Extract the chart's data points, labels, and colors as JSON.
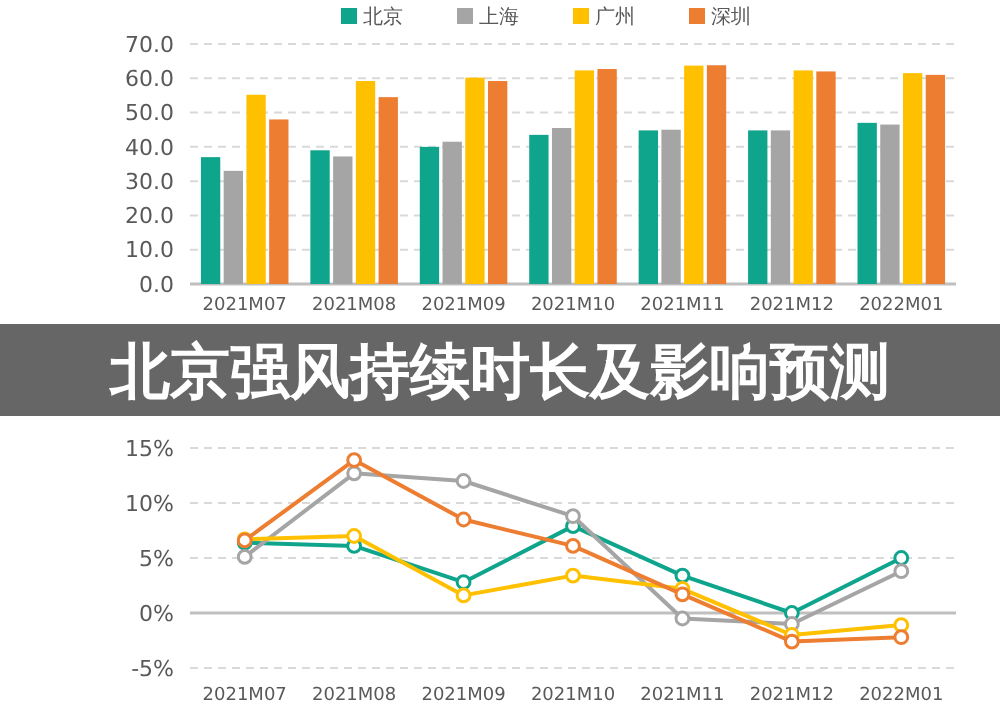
{
  "chart_data": [
    {
      "type": "bar",
      "categories": [
        "2021M07",
        "2021M08",
        "2021M09",
        "2021M10",
        "2021M11",
        "2021M12",
        "2022M01"
      ],
      "series": [
        {
          "name": "北京",
          "color": "#0fa58c",
          "values": [
            37,
            39,
            40,
            43.5,
            44.8,
            44.8,
            47
          ]
        },
        {
          "name": "上海",
          "color": "#a5a5a5",
          "values": [
            33,
            37.2,
            41.5,
            45.5,
            45,
            44.8,
            46.5
          ]
        },
        {
          "name": "广州",
          "color": "#ffc000",
          "values": [
            55.2,
            59.2,
            60.2,
            62.3,
            63.7,
            62.3,
            61.5
          ]
        },
        {
          "name": "深圳",
          "color": "#ed7d31",
          "values": [
            48,
            54.5,
            59.2,
            62.7,
            63.8,
            62,
            61
          ]
        }
      ],
      "ylim": [
        0,
        70
      ],
      "yticks": [
        {
          "value": 0,
          "label": "0.0"
        },
        {
          "value": 10,
          "label": "10.0"
        },
        {
          "value": 20,
          "label": "20.0"
        },
        {
          "value": 30,
          "label": "30.0"
        },
        {
          "value": 40,
          "label": "40.0"
        },
        {
          "value": 50,
          "label": "50.0"
        },
        {
          "value": 60,
          "label": "60.0"
        },
        {
          "value": 70,
          "label": "70.0"
        }
      ],
      "grid": "y",
      "legend": "top"
    },
    {
      "type": "line",
      "title": "北京强风持续时长及影响预测",
      "categories": [
        "2021M07",
        "2021M08",
        "2021M09",
        "2021M10",
        "2021M11",
        "2021M12",
        "2022M01"
      ],
      "series": [
        {
          "color": "#0fa58c",
          "values": [
            6.4,
            6.1,
            2.8,
            7.9,
            3.4,
            0,
            5.0
          ]
        },
        {
          "color": "#a5a5a5",
          "values": [
            5.1,
            12.7,
            12.0,
            8.8,
            -0.5,
            -1.0,
            3.8
          ]
        },
        {
          "color": "#ffc000",
          "values": [
            6.7,
            7.0,
            1.6,
            3.4,
            2.2,
            -2.0,
            -1.1
          ]
        },
        {
          "color": "#ed7d31",
          "values": [
            6.6,
            13.9,
            8.5,
            6.1,
            1.7,
            -2.6,
            -2.2
          ]
        }
      ],
      "ylim": [
        -5,
        15
      ],
      "yticks": [
        {
          "value": -5,
          "label": "-5%"
        },
        {
          "value": 0,
          "label": "0%"
        },
        {
          "value": 5,
          "label": "5%"
        },
        {
          "value": 10,
          "label": "10%"
        },
        {
          "value": 15,
          "label": "15%"
        }
      ],
      "grid": "y",
      "marker": "circle",
      "legend": false
    }
  ]
}
